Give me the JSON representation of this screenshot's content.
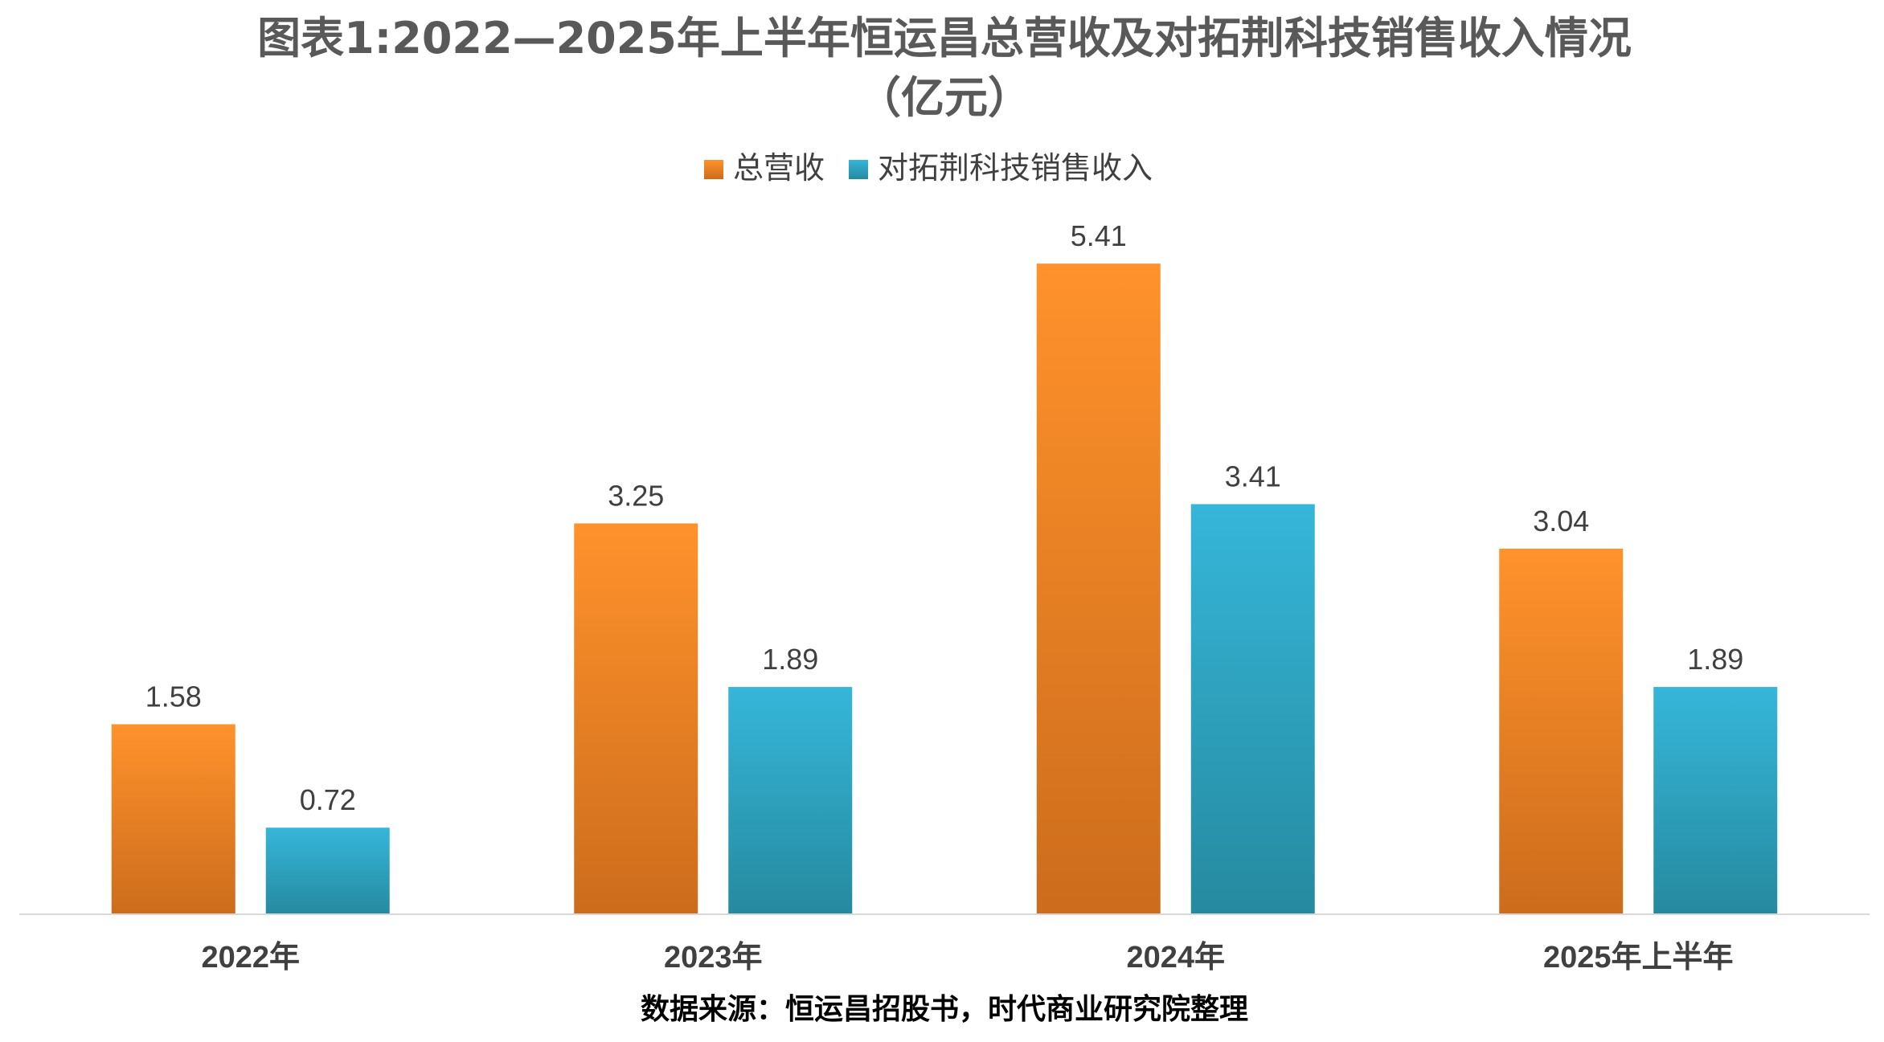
{
  "chart_data": {
    "type": "bar",
    "title": "图表1:2022—2025年上半年恒运昌总营收及对拓荆科技销售收入情况",
    "subtitle": "（亿元）",
    "categories": [
      "2022年",
      "2023年",
      "2024年",
      "2025年上半年"
    ],
    "series": [
      {
        "name": "总营收",
        "values": [
          1.58,
          3.25,
          5.41,
          3.04
        ],
        "labels": [
          "1.58",
          "3.25",
          "5.41",
          "3.04"
        ],
        "color_top": "#FF922B",
        "color_bottom": "#CC6C1C"
      },
      {
        "name": "对拓荆科技销售收入",
        "values": [
          0.72,
          1.89,
          3.41,
          1.89
        ],
        "labels": [
          "0.72",
          "1.89",
          "3.41",
          "1.89"
        ],
        "color_top": "#36B6D9",
        "color_bottom": "#258A9F"
      }
    ],
    "xlabel": "",
    "ylabel": "",
    "ylim": [
      0,
      6
    ],
    "grid": false,
    "legend_position": "top-center",
    "source": "数据来源：恒运昌招股书，时代商业研究院整理"
  },
  "colors": {
    "axis": "#D9D9D9",
    "title": "#595959",
    "text": "#404040"
  }
}
